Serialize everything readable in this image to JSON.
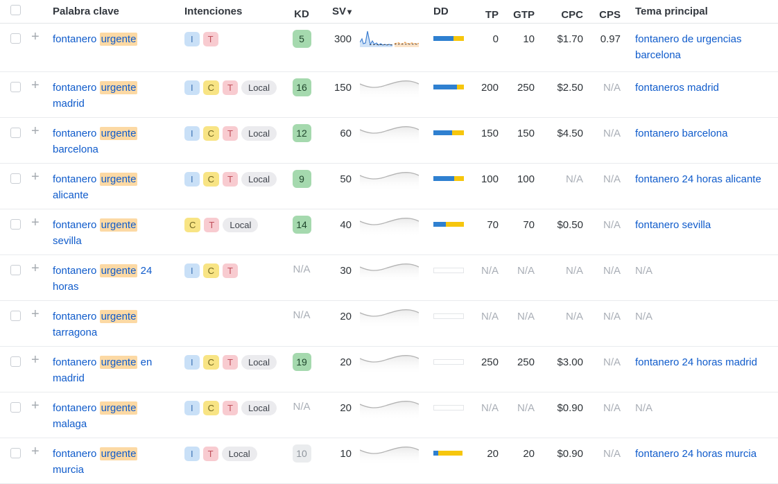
{
  "header": {
    "keyword": "Palabra clave",
    "intents": "Intenciones",
    "kd": "KD",
    "sv": "SV",
    "sort_icon": "▾",
    "dd": "DD",
    "tp": "TP",
    "gtp": "GTP",
    "cpc": "CPC",
    "cps": "CPS",
    "topic": "Tema principal"
  },
  "colors": {
    "link_blue": "#0f5bcb",
    "keyword_highlight": "#fcd9a4",
    "dd_blue": "#2f80d0",
    "dd_yellow": "#f6c60d",
    "kd_green_bg": "#a5d9ae",
    "na_gray": "#a9aeb6"
  },
  "rows": [
    {
      "keyword": {
        "pre": "fontanero",
        "highlight": "urgente",
        "post": ""
      },
      "intents": [
        "I",
        "T"
      ],
      "kd": {
        "value": "5",
        "style": "green"
      },
      "sv": "300",
      "spark": "trend",
      "dd": {
        "blue": 65,
        "yellow": 35
      },
      "tp": "0",
      "gtp": "10",
      "cpc": "$1.70",
      "cps": "0.97",
      "topic": "fontanero de urgencias barcelona"
    },
    {
      "keyword": {
        "pre": "fontanero",
        "highlight": "urgente",
        "post": "madrid"
      },
      "intents": [
        "I",
        "C",
        "T",
        "Local"
      ],
      "kd": {
        "value": "16",
        "style": "green"
      },
      "sv": "150",
      "spark": "wave",
      "dd": {
        "blue": 78,
        "yellow": 22
      },
      "tp": "200",
      "gtp": "250",
      "cpc": "$2.50",
      "cps": "N/A",
      "topic": "fontaneros madrid"
    },
    {
      "keyword": {
        "pre": "fontanero",
        "highlight": "urgente",
        "post": "barcelona"
      },
      "intents": [
        "I",
        "C",
        "T",
        "Local"
      ],
      "kd": {
        "value": "12",
        "style": "green"
      },
      "sv": "60",
      "spark": "wave",
      "dd": {
        "blue": 62,
        "yellow": 38
      },
      "tp": "150",
      "gtp": "150",
      "cpc": "$4.50",
      "cps": "N/A",
      "topic": "fontanero barcelona"
    },
    {
      "keyword": {
        "pre": "fontanero",
        "highlight": "urgente",
        "post": "alicante"
      },
      "intents": [
        "I",
        "C",
        "T",
        "Local"
      ],
      "kd": {
        "value": "9",
        "style": "green"
      },
      "sv": "50",
      "spark": "wave",
      "dd": {
        "blue": 68,
        "yellow": 32
      },
      "tp": "100",
      "gtp": "100",
      "cpc": "N/A",
      "cps": "N/A",
      "topic": "fontanero 24 horas alicante"
    },
    {
      "keyword": {
        "pre": "fontanero",
        "highlight": "urgente",
        "post": "sevilla"
      },
      "intents": [
        "C",
        "T",
        "Local"
      ],
      "kd": {
        "value": "14",
        "style": "green"
      },
      "sv": "40",
      "spark": "wave",
      "dd": {
        "blue": 42,
        "yellow": 58
      },
      "tp": "70",
      "gtp": "70",
      "cpc": "$0.50",
      "cps": "N/A",
      "topic": "fontanero sevilla"
    },
    {
      "keyword": {
        "pre": "fontanero",
        "highlight": "urgente",
        "post": "24 horas"
      },
      "intents": [
        "I",
        "C",
        "T"
      ],
      "kd": {
        "value": "N/A",
        "style": "na"
      },
      "sv": "30",
      "spark": "wave",
      "dd": {
        "empty": true
      },
      "tp": "N/A",
      "gtp": "N/A",
      "cpc": "N/A",
      "cps": "N/A",
      "topic": "N/A"
    },
    {
      "keyword": {
        "pre": "fontanero",
        "highlight": "urgente",
        "post": "tarragona"
      },
      "intents": [],
      "kd": {
        "value": "N/A",
        "style": "na"
      },
      "sv": "20",
      "spark": "wave",
      "dd": {
        "empty": true
      },
      "tp": "N/A",
      "gtp": "N/A",
      "cpc": "N/A",
      "cps": "N/A",
      "topic": "N/A"
    },
    {
      "keyword": {
        "pre": "fontanero",
        "highlight": "urgente",
        "post": "en madrid"
      },
      "intents": [
        "I",
        "C",
        "T",
        "Local"
      ],
      "kd": {
        "value": "19",
        "style": "green"
      },
      "sv": "20",
      "spark": "wave",
      "dd": {
        "empty": true
      },
      "tp": "250",
      "gtp": "250",
      "cpc": "$3.00",
      "cps": "N/A",
      "topic": "fontanero 24 horas madrid"
    },
    {
      "keyword": {
        "pre": "fontanero",
        "highlight": "urgente",
        "post": "malaga"
      },
      "intents": [
        "I",
        "C",
        "T",
        "Local"
      ],
      "kd": {
        "value": "N/A",
        "style": "na"
      },
      "sv": "20",
      "spark": "wave",
      "dd": {
        "empty": true
      },
      "tp": "N/A",
      "gtp": "N/A",
      "cpc": "$0.90",
      "cps": "N/A",
      "topic": "N/A"
    },
    {
      "keyword": {
        "pre": "fontanero",
        "highlight": "urgente",
        "post": "murcia"
      },
      "intents": [
        "I",
        "T",
        "Local"
      ],
      "kd": {
        "value": "10",
        "style": "gray"
      },
      "sv": "10",
      "spark": "wave",
      "dd": {
        "blue": 15,
        "yellow": 80
      },
      "tp": "20",
      "gtp": "20",
      "cpc": "$0.90",
      "cps": "N/A",
      "topic": "fontanero 24 horas murcia"
    }
  ]
}
